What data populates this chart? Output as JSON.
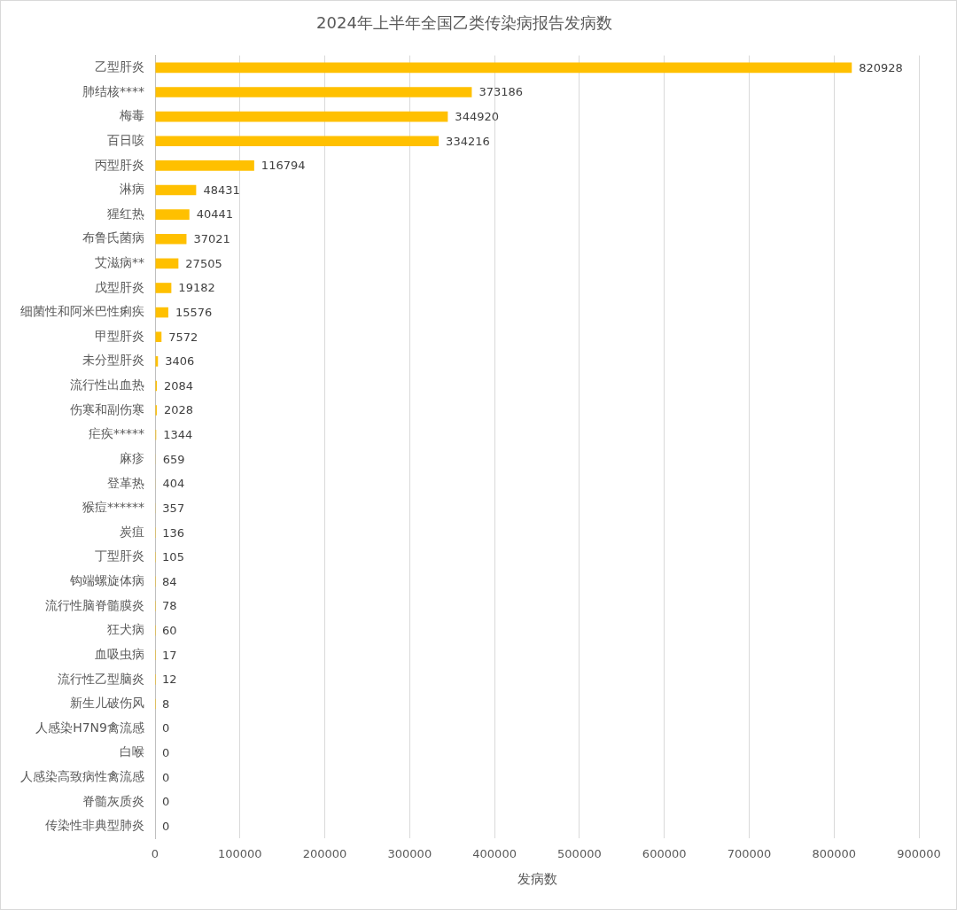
{
  "chart_data": {
    "type": "bar",
    "orientation": "horizontal",
    "title": "2024年上半年全国乙类传染病报告发病数",
    "xlabel": "发病数",
    "categories": [
      "乙型肝炎",
      "肺结核****",
      "梅毒",
      "百日咳",
      "丙型肝炎",
      "淋病",
      "猩红热",
      "布鲁氏菌病",
      "艾滋病**",
      "戊型肝炎",
      "细菌性和阿米巴性痢疾",
      "甲型肝炎",
      "未分型肝炎",
      "流行性出血热",
      "伤寒和副伤寒",
      "疟疾*****",
      "麻疹",
      "登革热",
      "猴痘******",
      "炭疽",
      "丁型肝炎",
      "钩端螺旋体病",
      "流行性脑脊髓膜炎",
      "狂犬病",
      "血吸虫病",
      "流行性乙型脑炎",
      "新生儿破伤风",
      "人感染H7N9禽流感",
      "白喉",
      "人感染高致病性禽流感",
      "脊髓灰质炎",
      "传染性非典型肺炎"
    ],
    "values": [
      820928,
      373186,
      344920,
      334216,
      116794,
      48431,
      40441,
      37021,
      27505,
      19182,
      15576,
      7572,
      3406,
      2084,
      2028,
      1344,
      659,
      404,
      357,
      136,
      105,
      84,
      78,
      60,
      17,
      12,
      8,
      0,
      0,
      0,
      0,
      0
    ],
    "color": "#ffc000",
    "xlim": [
      0,
      900000
    ],
    "xticks": [
      0,
      100000,
      200000,
      300000,
      400000,
      500000,
      600000,
      700000,
      800000,
      900000
    ],
    "grid": "x",
    "legend": false,
    "data_labels": true
  }
}
